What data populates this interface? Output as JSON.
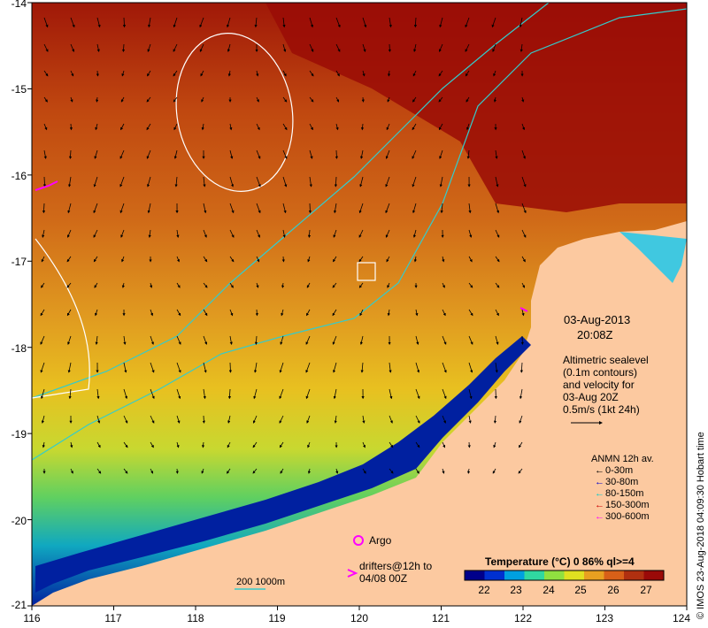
{
  "map": {
    "lon_ticks": [
      "116",
      "117",
      "118",
      "119",
      "120",
      "121",
      "122",
      "123",
      "124"
    ],
    "lat_ticks": [
      "-14",
      "-15",
      "-16",
      "-17",
      "-18",
      "-19",
      "-20",
      "-21"
    ]
  },
  "annotation": {
    "date": "03-Aug-2013",
    "time": "20:08Z",
    "altimetry_lines": [
      "Altimetric sealevel",
      "(0.1m contours)",
      "and velocity for",
      "03-Aug 20Z",
      "0.5m/s (1kt 24h)"
    ]
  },
  "anmn_legend": {
    "title": "ANMN 12h av.",
    "items": [
      {
        "label": "0-30m",
        "color": "#000000"
      },
      {
        "label": "30-80m",
        "color": "#0000cc"
      },
      {
        "label": "80-150m",
        "color": "#00cccc"
      },
      {
        "label": "150-300m",
        "color": "#cc0000"
      },
      {
        "label": "300-600m",
        "color": "#ff00ff"
      }
    ]
  },
  "argo": {
    "label": "Argo",
    "color": "#ff00ff"
  },
  "drifters": {
    "label_line1": "drifters@12h to",
    "label_line2": "04/08 00Z",
    "color": "#ff00ff"
  },
  "isobath": {
    "label": "200  1000m",
    "color": "#33cccc"
  },
  "colorbar": {
    "title": "Temperature (°C) 0 86% ql>=4",
    "ticks": [
      "22",
      "23",
      "24",
      "25",
      "26",
      "27"
    ],
    "colors": [
      "#00008b",
      "#0030d0",
      "#00a0e0",
      "#30d8a0",
      "#90e040",
      "#e0e020",
      "#e8a020",
      "#d86018",
      "#b03010",
      "#9a0a08"
    ]
  },
  "credit": "© IMOS 23-Aug-2018 04:09:30 Hobart time"
}
